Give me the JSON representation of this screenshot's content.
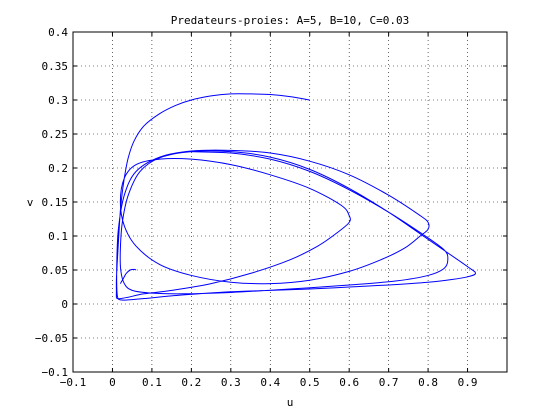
{
  "chart_data": {
    "type": "line",
    "title": "Predateurs-proies: A=5, B=10, C=0.03",
    "xlabel": "u",
    "ylabel": "v",
    "xlim": [
      -0.1,
      1.0
    ],
    "ylim": [
      -0.1,
      0.4
    ],
    "xticks": [
      -0.1,
      0,
      0.1,
      0.2,
      0.3,
      0.4,
      0.5,
      0.6,
      0.7,
      0.8,
      0.9
    ],
    "xtick_labels": [
      "−0.1",
      "0",
      "0.1",
      "0.2",
      "0.3",
      "0.4",
      "0.5",
      "0.6",
      "0.7",
      "0.8",
      "0.9"
    ],
    "yticks": [
      -0.1,
      -0.05,
      0,
      0.05,
      0.1,
      0.15,
      0.2,
      0.25,
      0.3,
      0.35,
      0.4
    ],
    "ytick_labels": [
      "−0.1",
      "−0.05",
      "0",
      "0.05",
      "0.1",
      "0.15",
      "0.2",
      "0.25",
      "0.3",
      "0.35",
      "0.4"
    ],
    "grid": true,
    "grid_style": "dotted",
    "line_color": "#0000ff",
    "series": [
      {
        "name": "",
        "x": [
          0.5,
          0.45,
          0.4,
          0.35,
          0.3,
          0.25,
          0.2,
          0.16,
          0.12,
          0.08,
          0.055,
          0.04,
          0.03,
          0.022,
          0.018,
          0.015,
          0.012,
          0.01,
          0.01,
          0.01,
          0.012,
          0.02,
          0.04,
          0.08,
          0.15,
          0.25,
          0.35,
          0.45,
          0.52,
          0.57,
          0.6,
          0.6,
          0.58,
          0.5,
          0.4,
          0.3,
          0.2,
          0.12,
          0.06,
          0.03,
          0.02,
          0.03,
          0.06,
          0.12,
          0.2,
          0.3,
          0.4,
          0.5,
          0.6,
          0.68,
          0.74,
          0.78,
          0.8,
          0.8,
          0.78,
          0.7,
          0.6,
          0.5,
          0.4,
          0.3,
          0.2,
          0.12,
          0.06,
          0.03,
          0.015,
          0.011,
          0.011,
          0.013,
          0.02,
          0.04,
          0.08,
          0.15,
          0.22,
          0.3,
          0.4,
          0.5,
          0.6,
          0.7,
          0.8,
          0.86,
          0.9,
          0.92,
          0.9,
          0.8,
          0.7,
          0.6,
          0.5,
          0.4,
          0.3,
          0.2,
          0.12,
          0.07,
          0.04,
          0.025,
          0.02,
          0.021,
          0.03,
          0.05,
          0.1,
          0.18,
          0.3,
          0.45,
          0.6,
          0.72,
          0.8,
          0.84,
          0.85,
          0.84,
          0.78,
          0.7,
          0.6,
          0.5,
          0.4,
          0.3,
          0.2
        ],
        "y": [
          0.3,
          0.305,
          0.308,
          0.309,
          0.309,
          0.306,
          0.3,
          0.292,
          0.28,
          0.262,
          0.24,
          0.215,
          0.185,
          0.15,
          0.12,
          0.09,
          0.06,
          0.035,
          0.018,
          0.01,
          0.008,
          0.008,
          0.01,
          0.015,
          0.02,
          0.03,
          0.045,
          0.065,
          0.085,
          0.105,
          0.12,
          0.13,
          0.145,
          0.17,
          0.19,
          0.205,
          0.213,
          0.213,
          0.205,
          0.185,
          0.15,
          0.115,
          0.085,
          0.058,
          0.042,
          0.032,
          0.03,
          0.035,
          0.048,
          0.065,
          0.082,
          0.1,
          0.11,
          0.12,
          0.13,
          0.16,
          0.19,
          0.21,
          0.222,
          0.226,
          0.225,
          0.216,
          0.195,
          0.16,
          0.11,
          0.06,
          0.025,
          0.01,
          0.006,
          0.006,
          0.008,
          0.012,
          0.015,
          0.018,
          0.02,
          0.022,
          0.025,
          0.028,
          0.032,
          0.036,
          0.04,
          0.045,
          0.055,
          0.095,
          0.135,
          0.17,
          0.198,
          0.216,
          0.224,
          0.224,
          0.215,
          0.195,
          0.16,
          0.12,
          0.08,
          0.05,
          0.03,
          0.02,
          0.016,
          0.015,
          0.017,
          0.022,
          0.028,
          0.034,
          0.042,
          0.052,
          0.065,
          0.08,
          0.105,
          0.135,
          0.168,
          0.195,
          0.213,
          0.222,
          0.224
        ]
      },
      {
        "name": "",
        "x": [
          0.02,
          0.025,
          0.03,
          0.035,
          0.045,
          0.055,
          0.06
        ],
        "y": [
          0.03,
          0.035,
          0.04,
          0.045,
          0.05,
          0.051,
          0.05
        ]
      }
    ]
  }
}
